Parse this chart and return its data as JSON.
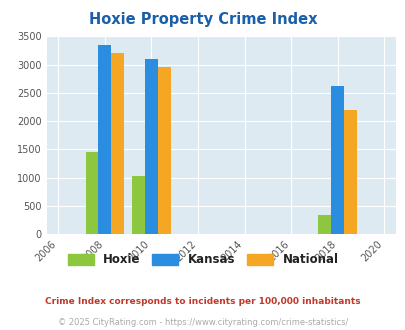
{
  "title": "Hoxie Property Crime Index",
  "title_color": "#1a5fa8",
  "years": [
    2008,
    2010,
    2018
  ],
  "hoxie": [
    1450,
    1025,
    350
  ],
  "kansas": [
    3350,
    3100,
    2625
  ],
  "national": [
    3200,
    2950,
    2200
  ],
  "hoxie_color": "#8dc63f",
  "kansas_color": "#2b8de0",
  "national_color": "#f5a623",
  "bg_color": "#ddeaf2",
  "xlim_min": 2005.5,
  "xlim_max": 2020.5,
  "ylim": [
    0,
    3500
  ],
  "yticks": [
    0,
    500,
    1000,
    1500,
    2000,
    2500,
    3000,
    3500
  ],
  "xticks": [
    2006,
    2008,
    2010,
    2012,
    2014,
    2016,
    2018,
    2020
  ],
  "bar_width": 0.55,
  "footnote1": "Crime Index corresponds to incidents per 100,000 inhabitants",
  "footnote2": "© 2025 CityRating.com - https://www.cityrating.com/crime-statistics/",
  "footnote1_color": "#c0392b",
  "footnote2_color": "#aaaaaa",
  "legend_labels": [
    "Hoxie",
    "Kansas",
    "National"
  ]
}
